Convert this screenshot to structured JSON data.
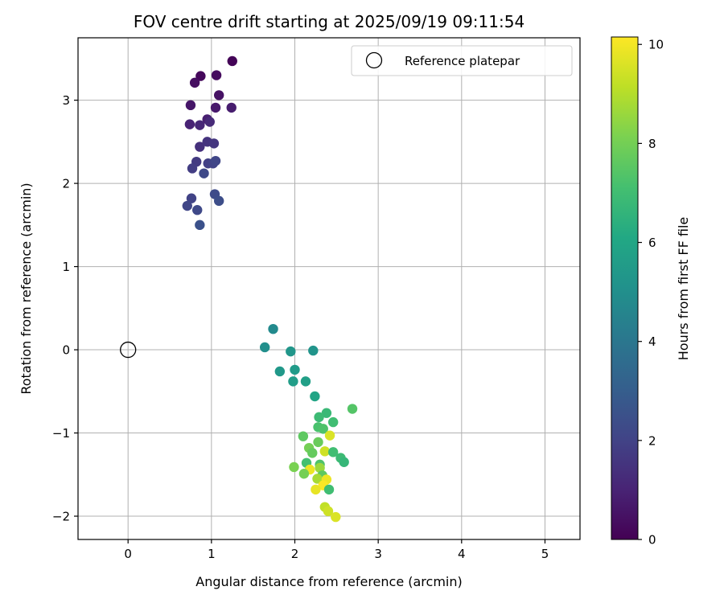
{
  "chart_data": {
    "type": "scatter",
    "title": "FOV centre drift starting at 2025/09/19 09:11:54",
    "xlabel": "Angular distance from reference (arcmin)",
    "ylabel": "Rotation from reference (arcmin)",
    "xlim": [
      -0.6,
      5.42
    ],
    "ylim": [
      -2.28,
      3.75
    ],
    "xticks": [
      0,
      1,
      2,
      3,
      4,
      5
    ],
    "yticks": [
      -2,
      -1,
      0,
      1,
      2,
      3
    ],
    "xtick_labels": [
      "0",
      "1",
      "2",
      "3",
      "4",
      "5"
    ],
    "ytick_labels": [
      "−2",
      "−1",
      "0",
      "1",
      "2",
      "3"
    ],
    "grid": true,
    "legend": {
      "position": "top-right",
      "label": "Reference platepar"
    },
    "reference_point": {
      "x": 0,
      "y": 0
    },
    "colorbar": {
      "label": "Hours from first FF file",
      "range": [
        0,
        10.15
      ],
      "ticks": [
        0,
        2,
        4,
        6,
        8,
        10
      ],
      "tick_labels": [
        "0",
        "2",
        "4",
        "6",
        "8",
        "10"
      ],
      "colormap": "viridis"
    },
    "points": [
      {
        "x": 1.25,
        "y": 3.47,
        "t": 0.1
      },
      {
        "x": 0.87,
        "y": 3.29,
        "t": 0.2
      },
      {
        "x": 1.06,
        "y": 3.3,
        "t": 0.3
      },
      {
        "x": 0.8,
        "y": 3.21,
        "t": 0.4
      },
      {
        "x": 1.09,
        "y": 3.06,
        "t": 0.5
      },
      {
        "x": 0.75,
        "y": 2.94,
        "t": 0.6
      },
      {
        "x": 1.05,
        "y": 2.91,
        "t": 0.7
      },
      {
        "x": 1.24,
        "y": 2.91,
        "t": 0.8
      },
      {
        "x": 0.95,
        "y": 2.77,
        "t": 0.9
      },
      {
        "x": 0.74,
        "y": 2.71,
        "t": 1.0
      },
      {
        "x": 0.86,
        "y": 2.7,
        "t": 1.1
      },
      {
        "x": 0.98,
        "y": 2.74,
        "t": 1.2
      },
      {
        "x": 0.86,
        "y": 2.44,
        "t": 1.4
      },
      {
        "x": 0.95,
        "y": 2.5,
        "t": 1.5
      },
      {
        "x": 1.03,
        "y": 2.48,
        "t": 1.6
      },
      {
        "x": 0.82,
        "y": 2.26,
        "t": 1.7
      },
      {
        "x": 0.77,
        "y": 2.18,
        "t": 1.8
      },
      {
        "x": 0.96,
        "y": 2.24,
        "t": 1.9
      },
      {
        "x": 1.02,
        "y": 2.24,
        "t": 2.0
      },
      {
        "x": 1.05,
        "y": 2.27,
        "t": 2.1
      },
      {
        "x": 0.91,
        "y": 2.12,
        "t": 2.2
      },
      {
        "x": 1.04,
        "y": 1.87,
        "t": 2.3
      },
      {
        "x": 1.09,
        "y": 1.79,
        "t": 2.4
      },
      {
        "x": 0.76,
        "y": 1.82,
        "t": 2.0
      },
      {
        "x": 0.71,
        "y": 1.73,
        "t": 2.1
      },
      {
        "x": 0.83,
        "y": 1.68,
        "t": 2.2
      },
      {
        "x": 0.86,
        "y": 1.5,
        "t": 2.5
      },
      {
        "x": 1.74,
        "y": 0.25,
        "t": 4.8
      },
      {
        "x": 1.64,
        "y": 0.03,
        "t": 5.0
      },
      {
        "x": 1.95,
        "y": -0.02,
        "t": 5.3
      },
      {
        "x": 2.22,
        "y": -0.01,
        "t": 5.2
      },
      {
        "x": 1.82,
        "y": -0.26,
        "t": 5.4
      },
      {
        "x": 2.0,
        "y": -0.24,
        "t": 5.5
      },
      {
        "x": 1.98,
        "y": -0.38,
        "t": 5.6
      },
      {
        "x": 2.13,
        "y": -0.38,
        "t": 5.7
      },
      {
        "x": 2.24,
        "y": -0.56,
        "t": 5.9
      },
      {
        "x": 2.69,
        "y": -0.71,
        "t": 7.4
      },
      {
        "x": 2.38,
        "y": -0.76,
        "t": 6.8
      },
      {
        "x": 2.29,
        "y": -0.81,
        "t": 6.9
      },
      {
        "x": 2.46,
        "y": -0.87,
        "t": 7.0
      },
      {
        "x": 2.28,
        "y": -0.93,
        "t": 7.2
      },
      {
        "x": 2.34,
        "y": -0.95,
        "t": 7.3
      },
      {
        "x": 2.1,
        "y": -1.04,
        "t": 7.6
      },
      {
        "x": 2.42,
        "y": -1.03,
        "t": 9.6
      },
      {
        "x": 2.28,
        "y": -1.11,
        "t": 7.8
      },
      {
        "x": 2.17,
        "y": -1.18,
        "t": 8.0
      },
      {
        "x": 2.21,
        "y": -1.24,
        "t": 7.7
      },
      {
        "x": 2.36,
        "y": -1.22,
        "t": 9.4
      },
      {
        "x": 2.46,
        "y": -1.23,
        "t": 7.0
      },
      {
        "x": 2.55,
        "y": -1.3,
        "t": 6.9
      },
      {
        "x": 2.59,
        "y": -1.35,
        "t": 6.7
      },
      {
        "x": 2.14,
        "y": -1.36,
        "t": 7.1
      },
      {
        "x": 2.3,
        "y": -1.38,
        "t": 7.3
      },
      {
        "x": 1.99,
        "y": -1.41,
        "t": 8.1
      },
      {
        "x": 2.3,
        "y": -1.42,
        "t": 8.6
      },
      {
        "x": 2.18,
        "y": -1.44,
        "t": 9.9
      },
      {
        "x": 2.11,
        "y": -1.49,
        "t": 8.0
      },
      {
        "x": 2.33,
        "y": -1.51,
        "t": 7.6
      },
      {
        "x": 2.27,
        "y": -1.55,
        "t": 8.8
      },
      {
        "x": 2.38,
        "y": -1.56,
        "t": 9.9
      },
      {
        "x": 2.34,
        "y": -1.63,
        "t": 10.1
      },
      {
        "x": 2.25,
        "y": -1.68,
        "t": 9.8
      },
      {
        "x": 2.41,
        "y": -1.68,
        "t": 7.0
      },
      {
        "x": 2.36,
        "y": -1.89,
        "t": 9.2
      },
      {
        "x": 2.4,
        "y": -1.94,
        "t": 9.4
      },
      {
        "x": 2.49,
        "y": -2.01,
        "t": 9.6
      }
    ]
  }
}
